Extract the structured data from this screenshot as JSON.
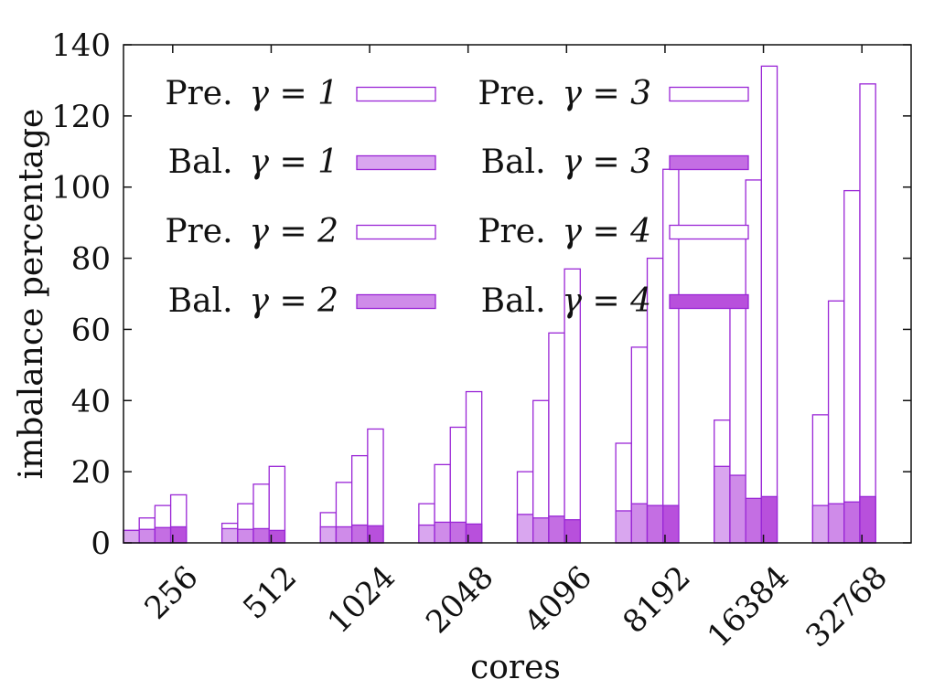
{
  "chart_data": {
    "type": "bar",
    "title": "",
    "xlabel": "cores",
    "ylabel": "imbalance percentage",
    "ylim": [
      0,
      140
    ],
    "yticks": [
      "0",
      "20",
      "40",
      "60",
      "80",
      "100",
      "120",
      "140"
    ],
    "categories": [
      "256",
      "512",
      "1024",
      "2048",
      "4096",
      "8192",
      "16384",
      "32768"
    ],
    "legend": {
      "placement": "top-left",
      "entries": [
        {
          "label": "Pre.",
          "gamma": "γ = 1",
          "series_index": 0
        },
        {
          "label": "Bal.",
          "gamma": "γ = 1",
          "series_index": 1
        },
        {
          "label": "Pre.",
          "gamma": "γ = 2",
          "series_index": 2
        },
        {
          "label": "Bal.",
          "gamma": "γ = 2",
          "series_index": 3
        },
        {
          "label": "Pre.",
          "gamma": "γ = 3",
          "series_index": 4
        },
        {
          "label": "Bal.",
          "gamma": "γ = 3",
          "series_index": 5
        },
        {
          "label": "Pre.",
          "gamma": "γ = 4",
          "series_index": 6
        },
        {
          "label": "Bal.",
          "gamma": "γ = 4",
          "series_index": 7
        }
      ]
    },
    "series": [
      {
        "name": "Pre. γ = 1",
        "kind": "pre",
        "gamma": 1,
        "fill": "#ffffff",
        "stroke": "#9a26d6",
        "values": [
          3.5,
          5.5,
          8.5,
          11,
          20,
          28,
          34.5,
          36
        ]
      },
      {
        "name": "Bal. γ = 1",
        "kind": "bal",
        "gamma": 1,
        "fill": "#d9a6ef",
        "stroke": "#9a26d6",
        "values": [
          3.5,
          4,
          4.5,
          5,
          8,
          9,
          21.5,
          10.5
        ]
      },
      {
        "name": "Pre. γ = 2",
        "kind": "pre",
        "gamma": 2,
        "fill": "#ffffff",
        "stroke": "#9a26d6",
        "values": [
          7,
          11,
          17,
          22,
          40,
          55,
          69,
          68
        ]
      },
      {
        "name": "Bal. γ = 2",
        "kind": "bal",
        "gamma": 2,
        "fill": "#cf8be9",
        "stroke": "#9a26d6",
        "values": [
          3.8,
          3.8,
          4.5,
          5.8,
          7,
          11,
          19,
          11
        ]
      },
      {
        "name": "Pre. γ = 3",
        "kind": "pre",
        "gamma": 3,
        "fill": "#ffffff",
        "stroke": "#9a26d6",
        "values": [
          10.5,
          16.5,
          24.5,
          32.5,
          59,
          80,
          102,
          99
        ]
      },
      {
        "name": "Bal. γ = 3",
        "kind": "bal",
        "gamma": 3,
        "fill": "#c46ee3",
        "stroke": "#9a26d6",
        "values": [
          4.3,
          4,
          5,
          5.8,
          7.5,
          10.5,
          12.5,
          11.5
        ]
      },
      {
        "name": "Pre. γ = 4",
        "kind": "pre",
        "gamma": 4,
        "fill": "#ffffff",
        "stroke": "#9a26d6",
        "values": [
          13.5,
          21.5,
          32,
          42.5,
          77,
          105,
          134,
          129
        ]
      },
      {
        "name": "Bal. γ = 4",
        "kind": "bal",
        "gamma": 4,
        "fill": "#b850dc",
        "stroke": "#9a26d6",
        "values": [
          4.5,
          3.5,
          4.8,
          5.3,
          6.5,
          10.5,
          13,
          13
        ]
      }
    ],
    "grid": false
  }
}
